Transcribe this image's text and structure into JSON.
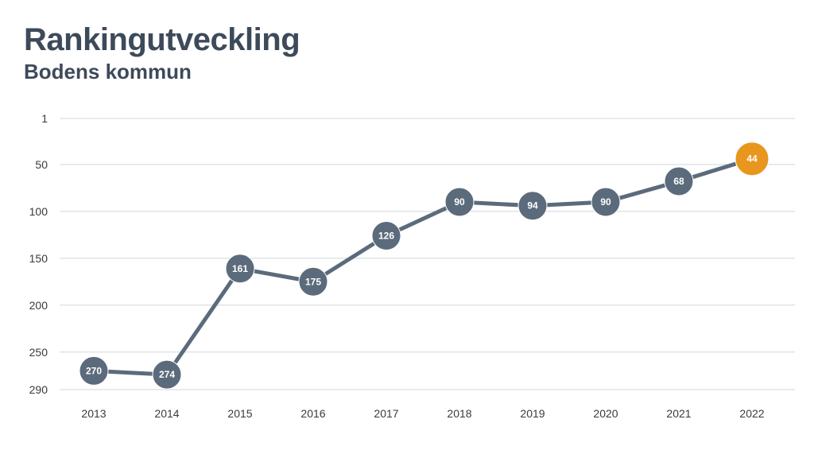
{
  "title": "Rankingutveckling",
  "subtitle": "Bodens kommun",
  "colors": {
    "title": "#3d4a5a",
    "line": "#5b6b7c",
    "marker": "#5b6b7c",
    "highlight": "#e8961e",
    "grid": "#d0d5db"
  },
  "chart_data": {
    "type": "line",
    "title": "",
    "xlabel": "",
    "ylabel": "",
    "categories": [
      "2013",
      "2014",
      "2015",
      "2016",
      "2017",
      "2018",
      "2019",
      "2020",
      "2021",
      "2022"
    ],
    "series": [
      {
        "values": [
          270,
          274,
          161,
          175,
          126,
          90,
          94,
          90,
          68,
          44
        ]
      }
    ],
    "y_axis_inverted": true,
    "ylim": [
      1,
      290
    ],
    "yticks": [
      1,
      50,
      100,
      150,
      200,
      250,
      290
    ],
    "grid": true,
    "highlight_last_point": true
  }
}
